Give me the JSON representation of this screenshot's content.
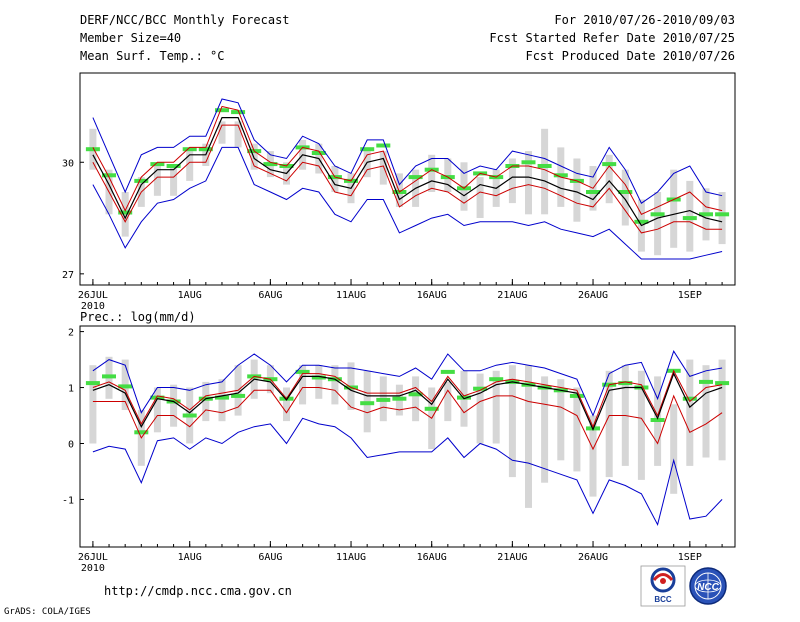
{
  "header": {
    "left_line1": "DERF/NCC/BCC Monthly Forecast",
    "left_line2": "Member Size=40",
    "left_line3": "Mean Surf. Temp.: °C",
    "right_line1": "For 2010/07/26-2010/09/03",
    "right_line2": "Fcst Started Refer Date 2010/07/25",
    "right_line3": "Fcst Produced Date 2010/07/26"
  },
  "footer": {
    "url": "http://cmdp.ncc.cma.gov.cn",
    "credit": "GrADS: COLA/IGES",
    "logo_bcc": "BCC",
    "logo_ncc": "NCC"
  },
  "colors": {
    "spread": "#d6d6d6",
    "median": "#44dd44",
    "outer": "#0000cc",
    "inner": "#cc0000",
    "mean": "#000000"
  },
  "chart_data": [
    {
      "type": "line",
      "title": "Mean Surf. Temp.: °C",
      "xlabel": "",
      "ylabel": "°C",
      "x_tick_labels": [
        "26JUL",
        "1AUG",
        "6AUG",
        "11AUG",
        "16AUG",
        "21AUG",
        "26AUG",
        "1SEP"
      ],
      "x_tick_day_index": [
        0,
        6,
        11,
        16,
        21,
        26,
        31,
        37
      ],
      "x_year_label": "2010",
      "y_tick_labels": [
        "27",
        "30"
      ],
      "y_ticks": [
        27,
        30
      ],
      "ylim": [
        26.7,
        32.4
      ],
      "xlim": [
        -0.8,
        39.8
      ],
      "x": [
        0,
        1,
        2,
        3,
        4,
        5,
        6,
        7,
        8,
        9,
        10,
        11,
        12,
        13,
        14,
        15,
        16,
        17,
        18,
        19,
        20,
        21,
        22,
        23,
        24,
        25,
        26,
        27,
        28,
        29,
        30,
        31,
        32,
        33,
        34,
        35,
        36,
        37,
        38,
        39
      ],
      "series": [
        {
          "name": "Ensemble spread top",
          "values": [
            30.9,
            29.8,
            29.2,
            29.6,
            29.9,
            29.9,
            30.3,
            30.5,
            31.1,
            31.1,
            30.5,
            30.3,
            30.0,
            30.6,
            30.5,
            29.9,
            29.7,
            30.4,
            30.3,
            29.7,
            29.8,
            30.2,
            30.1,
            30.0,
            29.6,
            29.8,
            30.1,
            30.3,
            30.9,
            30.4,
            30.1,
            29.9,
            30.2,
            29.8,
            29.0,
            29.2,
            29.8,
            29.5,
            29.3,
            29.2
          ]
        },
        {
          "name": "Ensemble spread bottom",
          "values": [
            29.8,
            28.6,
            28.0,
            28.8,
            29.1,
            29.1,
            29.5,
            29.9,
            30.5,
            30.4,
            29.8,
            29.6,
            29.4,
            29.8,
            29.7,
            29.2,
            28.9,
            29.6,
            29.4,
            28.8,
            28.8,
            29.2,
            29.2,
            28.7,
            28.5,
            28.8,
            28.9,
            28.6,
            28.6,
            28.8,
            28.4,
            28.7,
            28.9,
            28.3,
            27.6,
            27.5,
            27.7,
            27.6,
            27.9,
            27.8
          ]
        },
        {
          "name": "Median",
          "values": [
            30.35,
            29.65,
            28.65,
            29.5,
            29.95,
            29.9,
            30.35,
            30.35,
            31.4,
            31.35,
            30.3,
            29.95,
            29.9,
            30.4,
            30.25,
            29.6,
            29.5,
            30.35,
            30.45,
            29.2,
            29.6,
            29.8,
            29.6,
            29.3,
            29.7,
            29.6,
            29.9,
            30.0,
            29.9,
            29.65,
            29.5,
            29.2,
            29.95,
            29.2,
            28.4,
            28.6,
            29.0,
            28.5,
            28.6,
            28.6
          ]
        },
        {
          "name": "Max envelope",
          "values": [
            31.2,
            30.2,
            29.2,
            30.2,
            30.4,
            30.4,
            30.7,
            30.7,
            31.7,
            31.6,
            30.6,
            30.2,
            30.1,
            30.7,
            30.5,
            29.9,
            29.7,
            30.6,
            30.6,
            29.4,
            29.9,
            30.1,
            30.1,
            29.7,
            29.9,
            29.8,
            30.3,
            30.2,
            30.1,
            29.9,
            29.7,
            29.6,
            30.4,
            29.8,
            28.9,
            29.2,
            29.7,
            29.9,
            29.2,
            29.1
          ]
        },
        {
          "name": "Upper quartile",
          "values": [
            30.4,
            29.6,
            28.7,
            29.6,
            30.0,
            30.0,
            30.4,
            30.4,
            31.5,
            31.4,
            30.3,
            30.0,
            29.9,
            30.4,
            30.3,
            29.6,
            29.5,
            30.2,
            30.3,
            29.2,
            29.5,
            29.8,
            29.6,
            29.3,
            29.7,
            29.6,
            29.9,
            29.9,
            29.8,
            29.6,
            29.5,
            29.3,
            29.9,
            29.4,
            28.6,
            28.8,
            29.0,
            29.2,
            28.8,
            28.7
          ]
        },
        {
          "name": "Ensemble mean",
          "values": [
            30.2,
            29.4,
            28.5,
            29.4,
            29.8,
            29.8,
            30.2,
            30.2,
            31.2,
            31.2,
            30.1,
            29.8,
            29.7,
            30.2,
            30.1,
            29.4,
            29.3,
            30.0,
            30.1,
            29.0,
            29.3,
            29.5,
            29.4,
            29.1,
            29.4,
            29.3,
            29.6,
            29.6,
            29.5,
            29.3,
            29.2,
            29.0,
            29.5,
            29.0,
            28.3,
            28.5,
            28.6,
            28.7,
            28.5,
            28.4
          ]
        },
        {
          "name": "Lower quartile",
          "values": [
            30.0,
            29.2,
            28.4,
            29.2,
            29.6,
            29.6,
            30.0,
            30.0,
            31.0,
            31.0,
            29.9,
            29.7,
            29.5,
            30.0,
            29.9,
            29.2,
            29.1,
            29.8,
            29.9,
            28.8,
            29.1,
            29.3,
            29.2,
            28.9,
            29.2,
            29.1,
            29.3,
            29.4,
            29.3,
            29.1,
            28.9,
            28.8,
            29.3,
            28.7,
            28.1,
            28.2,
            28.4,
            28.4,
            28.2,
            28.2
          ]
        },
        {
          "name": "Min envelope",
          "values": [
            29.4,
            28.6,
            27.7,
            28.4,
            28.9,
            29.0,
            29.3,
            29.5,
            30.4,
            30.4,
            29.4,
            29.2,
            29.0,
            29.3,
            29.2,
            28.6,
            28.4,
            29.0,
            29.0,
            28.1,
            28.3,
            28.5,
            28.6,
            28.3,
            28.4,
            28.4,
            28.4,
            28.3,
            28.4,
            28.2,
            28.1,
            28.0,
            28.2,
            27.8,
            27.4,
            27.4,
            27.4,
            27.4,
            27.5,
            27.6
          ]
        }
      ]
    },
    {
      "type": "line",
      "title": "Prec.: log(mm/d)",
      "xlabel": "",
      "ylabel": "log(mm/d)",
      "x_tick_labels": [
        "26JUL",
        "1AUG",
        "6AUG",
        "11AUG",
        "16AUG",
        "21AUG",
        "26AUG",
        "1SEP"
      ],
      "x_tick_day_index": [
        0,
        6,
        11,
        16,
        21,
        26,
        31,
        37
      ],
      "x_year_label": "2010",
      "y_tick_labels": [
        "-1",
        "0",
        "1",
        "2"
      ],
      "y_ticks": [
        -1,
        0,
        1,
        2
      ],
      "ylim": [
        -1.85,
        2.1
      ],
      "xlim": [
        -0.8,
        39.8
      ],
      "x": [
        0,
        1,
        2,
        3,
        4,
        5,
        6,
        7,
        8,
        9,
        10,
        11,
        12,
        13,
        14,
        15,
        16,
        17,
        18,
        19,
        20,
        21,
        22,
        23,
        24,
        25,
        26,
        27,
        28,
        29,
        30,
        31,
        32,
        33,
        34,
        35,
        36,
        37,
        38,
        39
      ],
      "series": [
        {
          "name": "Ensemble spread top",
          "values": [
            1.4,
            1.55,
            1.5,
            0.6,
            1.0,
            1.05,
            1.0,
            1.1,
            1.15,
            1.4,
            1.5,
            1.4,
            1.0,
            1.4,
            1.4,
            1.4,
            1.45,
            1.3,
            1.2,
            1.05,
            1.2,
            1.0,
            1.1,
            1.3,
            1.25,
            1.3,
            1.4,
            1.4,
            1.2,
            1.15,
            1.0,
            0.5,
            1.3,
            1.4,
            1.3,
            1.2,
            0.7,
            1.5,
            1.4,
            1.5
          ]
        },
        {
          "name": "Ensemble spread bottom",
          "values": [
            0.0,
            0.8,
            0.6,
            -0.4,
            0.2,
            0.3,
            0.0,
            0.4,
            0.4,
            0.5,
            0.8,
            0.9,
            0.4,
            0.7,
            0.8,
            0.7,
            0.6,
            0.2,
            0.4,
            0.5,
            0.4,
            -0.1,
            0.4,
            0.3,
            0.0,
            0.0,
            -0.6,
            -1.15,
            -0.7,
            -0.3,
            -0.5,
            -0.95,
            -0.6,
            -0.4,
            -0.65,
            -0.4,
            -0.9,
            -0.4,
            -0.25,
            -0.3
          ]
        },
        {
          "name": "Median",
          "values": [
            1.08,
            1.2,
            1.02,
            0.2,
            0.82,
            0.75,
            0.5,
            0.8,
            0.82,
            0.85,
            1.2,
            1.15,
            0.8,
            1.28,
            1.18,
            1.15,
            1.0,
            0.72,
            0.78,
            0.8,
            0.88,
            0.62,
            1.28,
            0.82,
            0.98,
            1.15,
            1.1,
            1.05,
            1.0,
            0.95,
            0.85,
            0.27,
            1.05,
            1.08,
            1.0,
            0.42,
            1.3,
            0.8,
            1.1,
            1.08
          ]
        },
        {
          "name": "Max envelope",
          "values": [
            1.3,
            1.5,
            1.4,
            0.55,
            1.0,
            1.0,
            0.95,
            1.05,
            1.1,
            1.4,
            1.6,
            1.4,
            1.1,
            1.4,
            1.4,
            1.35,
            1.35,
            1.3,
            1.25,
            1.2,
            1.35,
            1.15,
            1.6,
            1.3,
            1.3,
            1.4,
            1.45,
            1.4,
            1.35,
            1.25,
            1.15,
            0.5,
            1.25,
            1.4,
            1.45,
            0.8,
            1.65,
            1.2,
            1.3,
            1.35
          ]
        },
        {
          "name": "Upper quartile",
          "values": [
            1.0,
            1.1,
            0.95,
            0.35,
            0.85,
            0.8,
            0.6,
            0.85,
            0.9,
            0.95,
            1.2,
            1.15,
            0.8,
            1.25,
            1.25,
            1.2,
            1.0,
            0.9,
            0.9,
            0.9,
            1.0,
            0.75,
            1.2,
            0.85,
            0.95,
            1.1,
            1.15,
            1.1,
            1.05,
            1.0,
            0.95,
            0.3,
            1.05,
            1.1,
            1.05,
            0.5,
            1.3,
            0.75,
            1.0,
            1.05
          ]
        },
        {
          "name": "Ensemble mean",
          "values": [
            0.95,
            1.05,
            0.9,
            0.3,
            0.8,
            0.75,
            0.55,
            0.8,
            0.85,
            0.9,
            1.15,
            1.1,
            0.78,
            1.2,
            1.2,
            1.15,
            0.95,
            0.85,
            0.85,
            0.85,
            0.95,
            0.7,
            1.15,
            0.8,
            0.9,
            1.05,
            1.1,
            1.05,
            1.0,
            0.95,
            0.9,
            0.25,
            0.95,
            1.0,
            1.0,
            0.45,
            1.25,
            0.65,
            0.9,
            1.0
          ]
        },
        {
          "name": "Lower quartile",
          "values": [
            0.75,
            0.75,
            0.75,
            0.1,
            0.5,
            0.5,
            0.3,
            0.6,
            0.55,
            0.65,
            0.95,
            0.95,
            0.55,
            1.0,
            1.0,
            0.95,
            0.65,
            0.55,
            0.65,
            0.6,
            0.65,
            0.45,
            0.95,
            0.55,
            0.75,
            0.85,
            0.85,
            0.75,
            0.7,
            0.65,
            0.5,
            -0.1,
            0.5,
            0.5,
            0.45,
            0.0,
            0.85,
            0.2,
            0.35,
            0.55
          ]
        },
        {
          "name": "Min envelope",
          "values": [
            -0.15,
            -0.05,
            -0.1,
            -0.7,
            0.05,
            0.1,
            -0.1,
            0.1,
            0.0,
            0.2,
            0.3,
            0.35,
            0.0,
            0.45,
            0.35,
            0.3,
            0.1,
            -0.25,
            -0.2,
            -0.15,
            -0.15,
            -0.15,
            0.1,
            -0.25,
            0.0,
            -0.1,
            -0.3,
            -0.35,
            -0.45,
            -0.55,
            -0.65,
            -1.25,
            -0.65,
            -0.75,
            -0.9,
            -1.45,
            -0.3,
            -1.35,
            -1.3,
            -1.0
          ]
        }
      ]
    }
  ]
}
